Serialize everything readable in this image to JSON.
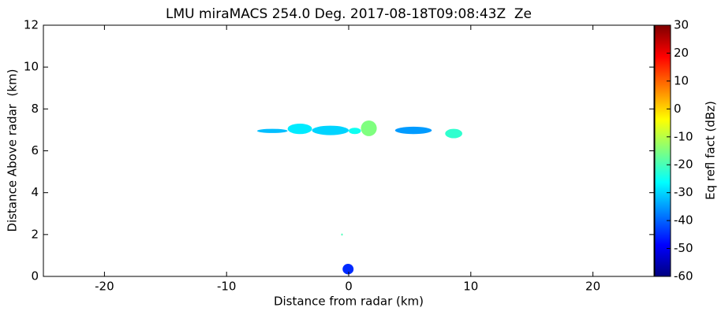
{
  "chart_data": {
    "type": "rhi",
    "title": "LMU miraMACS 254.0 Deg. 2017-08-18T09:08:43Z  Ze",
    "x_label": "Distance from radar (km)",
    "y_label": "Distance Above radar  (km)",
    "colorbar_label": "Eq refl fact (dBz)",
    "xlim": [
      -25,
      25
    ],
    "xticks": [
      -20,
      -10,
      0,
      10,
      20
    ],
    "ylim": [
      0,
      12
    ],
    "yticks": [
      0,
      2,
      4,
      6,
      8,
      10,
      12
    ],
    "clim": [
      -60,
      30
    ],
    "cticks": [
      -60,
      -50,
      -40,
      -30,
      -20,
      -10,
      0,
      10,
      20,
      30
    ],
    "colormap": [
      "#00007f",
      "#0000ff",
      "#007fff",
      "#00ffff",
      "#7fff7f",
      "#ffff00",
      "#ff7f00",
      "#ff0000",
      "#7f0000"
    ],
    "echoes": [
      {
        "x": [
          -7.5,
          -5
        ],
        "y": [
          6.85,
          7.05
        ],
        "value": -32
      },
      {
        "x": [
          -5,
          -3
        ],
        "y": [
          6.8,
          7.3
        ],
        "value": -28
      },
      {
        "x": [
          -3,
          0
        ],
        "y": [
          6.75,
          7.2
        ],
        "value": -30
      },
      {
        "x": [
          0,
          1
        ],
        "y": [
          6.8,
          7.1
        ],
        "value": -25
      },
      {
        "x": [
          1,
          2.3
        ],
        "y": [
          6.7,
          7.45
        ],
        "value": -15
      },
      {
        "x": [
          3.8,
          6.8
        ],
        "y": [
          6.8,
          7.15
        ],
        "value": -35
      },
      {
        "x": [
          7.9,
          9.3
        ],
        "y": [
          6.6,
          7.05
        ],
        "value": -22
      },
      {
        "x": [
          -0.6,
          -0.5
        ],
        "y": [
          1.95,
          2.05
        ],
        "value": -20
      },
      {
        "x": [
          -0.5,
          0.4
        ],
        "y": [
          0.1,
          0.6
        ],
        "value": -45
      }
    ]
  }
}
